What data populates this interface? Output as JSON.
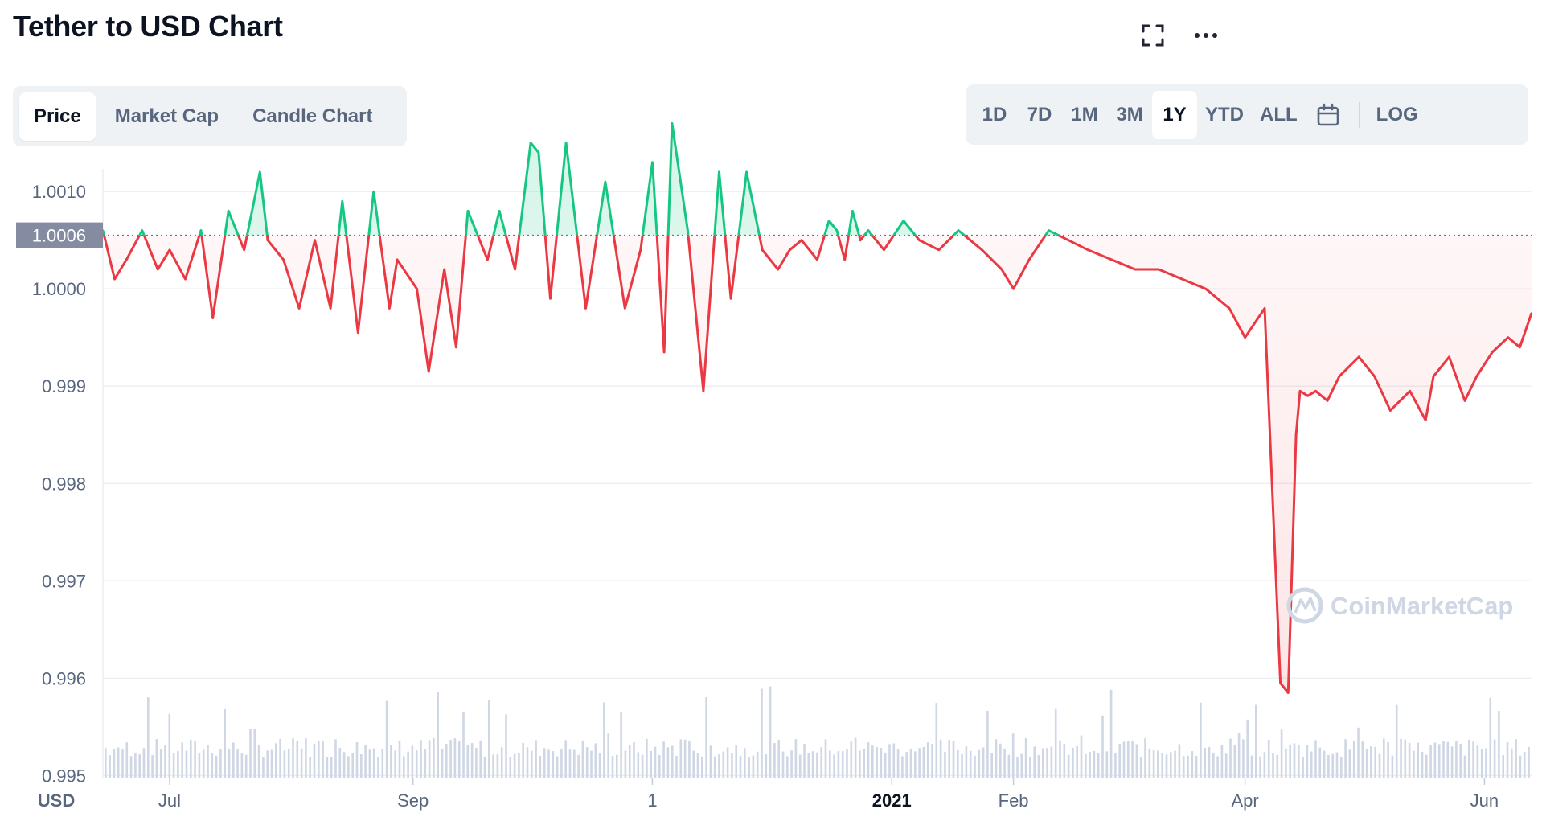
{
  "title": "Tether to USD Chart",
  "tabs": [
    {
      "label": "Price",
      "active": true
    },
    {
      "label": "Market Cap",
      "active": false
    },
    {
      "label": "Candle Chart",
      "active": false
    }
  ],
  "ranges": [
    {
      "label": "1D",
      "active": false
    },
    {
      "label": "7D",
      "active": false
    },
    {
      "label": "1M",
      "active": false
    },
    {
      "label": "3M",
      "active": false
    },
    {
      "label": "1Y",
      "active": true
    },
    {
      "label": "YTD",
      "active": false
    },
    {
      "label": "ALL",
      "active": false
    }
  ],
  "log_label": "LOG",
  "icons": {
    "fullscreen": "fullscreen-icon",
    "more": "more-icon",
    "calendar": "calendar-icon"
  },
  "watermark": "CoinMarketCap",
  "colors": {
    "up": "#16c784",
    "down": "#ea3943",
    "grid": "#eceff3",
    "text": "#58667e",
    "volume": "#cfd6e4"
  },
  "chart_data": {
    "type": "line",
    "title": "Tether to USD Chart",
    "currency": "USD",
    "ylim": [
      0.99497,
      1.00115
    ],
    "yticks": [
      {
        "value": 0.995,
        "label": "0.995"
      },
      {
        "value": 0.996,
        "label": "0.996"
      },
      {
        "value": 0.997,
        "label": "0.997"
      },
      {
        "value": 0.998,
        "label": "0.998"
      },
      {
        "value": 0.999,
        "label": "0.999"
      },
      {
        "value": 1.0,
        "label": "1.0000"
      },
      {
        "value": 1.001,
        "label": "1.0010"
      }
    ],
    "reference": {
      "value": 1.00055,
      "label": "1.0006"
    },
    "x_range": [
      "2020-06-14",
      "2021-06-13"
    ],
    "xticks": [
      {
        "date": "2020-07-01",
        "label": "Jul",
        "bold": false
      },
      {
        "date": "2020-09-01",
        "label": "Sep",
        "bold": false
      },
      {
        "date": "2020-11-01",
        "label": "1",
        "bold": false
      },
      {
        "date": "2021-01-01",
        "label": "2021",
        "bold": true
      },
      {
        "date": "2021-02-01",
        "label": "Feb",
        "bold": false
      },
      {
        "date": "2021-04-01",
        "label": "Apr",
        "bold": false
      },
      {
        "date": "2021-06-01",
        "label": "Jun",
        "bold": false
      }
    ],
    "volume_shown": true,
    "grid": true,
    "series": [
      {
        "x": [
          "2020-06-14",
          "2020-06-17",
          "2020-06-20",
          "2020-06-24",
          "2020-06-28",
          "2020-07-01",
          "2020-07-05",
          "2020-07-09",
          "2020-07-12",
          "2020-07-16",
          "2020-07-20",
          "2020-07-24",
          "2020-07-26",
          "2020-07-30",
          "2020-08-03",
          "2020-08-07",
          "2020-08-11",
          "2020-08-14",
          "2020-08-18",
          "2020-08-22",
          "2020-08-26",
          "2020-08-28",
          "2020-09-02",
          "2020-09-05",
          "2020-09-09",
          "2020-09-12",
          "2020-09-15",
          "2020-09-20",
          "2020-09-23",
          "2020-09-27",
          "2020-10-01",
          "2020-10-03",
          "2020-10-06",
          "2020-10-10",
          "2020-10-15",
          "2020-10-20",
          "2020-10-25",
          "2020-10-29",
          "2020-11-01",
          "2020-11-04",
          "2020-11-06",
          "2020-11-10",
          "2020-11-14",
          "2020-11-18",
          "2020-11-21",
          "2020-11-25",
          "2020-11-29",
          "2020-12-03",
          "2020-12-06",
          "2020-12-09",
          "2020-12-13",
          "2020-12-16",
          "2020-12-18",
          "2020-12-20",
          "2020-12-22",
          "2020-12-24",
          "2020-12-26",
          "2020-12-30",
          "2021-01-04",
          "2021-01-08",
          "2021-01-13",
          "2021-01-18",
          "2021-01-24",
          "2021-01-29",
          "2021-02-01",
          "2021-02-05",
          "2021-02-10",
          "2021-02-15",
          "2021-02-20",
          "2021-02-26",
          "2021-03-04",
          "2021-03-10",
          "2021-03-16",
          "2021-03-22",
          "2021-03-28",
          "2021-04-01",
          "2021-04-06",
          "2021-04-10",
          "2021-04-12",
          "2021-04-14",
          "2021-04-15",
          "2021-04-17",
          "2021-04-19",
          "2021-04-22",
          "2021-04-25",
          "2021-04-30",
          "2021-05-04",
          "2021-05-08",
          "2021-05-13",
          "2021-05-17",
          "2021-05-19",
          "2021-05-23",
          "2021-05-27",
          "2021-05-30",
          "2021-06-03",
          "2021-06-07",
          "2021-06-10",
          "2021-06-13"
        ],
        "y": [
          1.0006,
          1.0001,
          1.0003,
          1.0006,
          1.0002,
          1.0004,
          1.0001,
          1.0006,
          0.9997,
          1.0008,
          1.0004,
          1.0012,
          1.0005,
          1.0003,
          0.9998,
          1.0005,
          0.9998,
          1.0009,
          0.99955,
          1.001,
          0.9998,
          1.0003,
          1.0,
          0.99915,
          1.0002,
          0.9994,
          1.0008,
          1.0003,
          1.0008,
          1.0002,
          1.0015,
          1.0014,
          0.9999,
          1.0015,
          0.9998,
          1.0011,
          0.9998,
          1.0004,
          1.0013,
          0.99935,
          1.0017,
          1.0006,
          0.99895,
          1.0012,
          0.9999,
          1.0012,
          1.0004,
          1.0002,
          1.0004,
          1.0005,
          1.0003,
          1.0007,
          1.0006,
          1.0003,
          1.0008,
          1.0005,
          1.0006,
          1.0004,
          1.0007,
          1.0005,
          1.0004,
          1.0006,
          1.0004,
          1.0002,
          1.0,
          1.0003,
          1.0006,
          1.0005,
          1.0004,
          1.0003,
          1.0002,
          1.0002,
          1.0001,
          1.0,
          0.9998,
          0.9995,
          0.9998,
          0.99595,
          0.99585,
          0.9985,
          0.99895,
          0.9989,
          0.99895,
          0.99885,
          0.9991,
          0.9993,
          0.9991,
          0.99875,
          0.99895,
          0.99865,
          0.9991,
          0.9993,
          0.99885,
          0.9991,
          0.99935,
          0.9995,
          0.9994,
          0.99975
        ]
      }
    ]
  }
}
